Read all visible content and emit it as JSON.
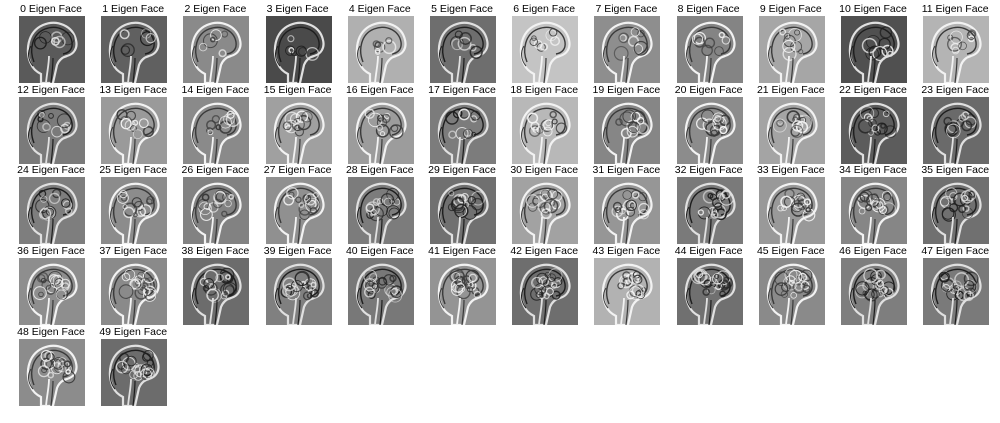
{
  "figure": {
    "caption_suffix": "Eigen Face",
    "images": [
      {
        "label": "0 Eigen Face",
        "tone": "#5a5a5a"
      },
      {
        "label": "1 Eigen Face",
        "tone": "#606060"
      },
      {
        "label": "2 Eigen Face",
        "tone": "#8a8a8a"
      },
      {
        "label": "3 Eigen Face",
        "tone": "#4a4a4a"
      },
      {
        "label": "4 Eigen Face",
        "tone": "#b0b0b0"
      },
      {
        "label": "5 Eigen Face",
        "tone": "#6e6e6e"
      },
      {
        "label": "6 Eigen Face",
        "tone": "#c4c4c4"
      },
      {
        "label": "7 Eigen Face",
        "tone": "#8e8e8e"
      },
      {
        "label": "8 Eigen Face",
        "tone": "#848484"
      },
      {
        "label": "9 Eigen Face",
        "tone": "#a6a6a6"
      },
      {
        "label": "10 Eigen Face",
        "tone": "#505050"
      },
      {
        "label": "11 Eigen Face",
        "tone": "#b4b4b4"
      },
      {
        "label": "12 Eigen Face",
        "tone": "#7a7a7a"
      },
      {
        "label": "13 Eigen Face",
        "tone": "#9a9a9a"
      },
      {
        "label": "14 Eigen Face",
        "tone": "#8a8a8a"
      },
      {
        "label": "15 Eigen Face",
        "tone": "#a0a0a0"
      },
      {
        "label": "16 Eigen Face",
        "tone": "#9c9c9c"
      },
      {
        "label": "17 Eigen Face",
        "tone": "#7c7c7c"
      },
      {
        "label": "18 Eigen Face",
        "tone": "#b8b8b8"
      },
      {
        "label": "19 Eigen Face",
        "tone": "#868686"
      },
      {
        "label": "20 Eigen Face",
        "tone": "#8c8c8c"
      },
      {
        "label": "21 Eigen Face",
        "tone": "#a4a4a4"
      },
      {
        "label": "22 Eigen Face",
        "tone": "#5c5c5c"
      },
      {
        "label": "23 Eigen Face",
        "tone": "#6a6a6a"
      },
      {
        "label": "24 Eigen Face",
        "tone": "#7e7e7e"
      },
      {
        "label": "25 Eigen Face",
        "tone": "#8c8c8c"
      },
      {
        "label": "26 Eigen Face",
        "tone": "#828282"
      },
      {
        "label": "27 Eigen Face",
        "tone": "#909090"
      },
      {
        "label": "28 Eigen Face",
        "tone": "#7c7c7c"
      },
      {
        "label": "29 Eigen Face",
        "tone": "#707070"
      },
      {
        "label": "30 Eigen Face",
        "tone": "#a2a2a2"
      },
      {
        "label": "31 Eigen Face",
        "tone": "#969696"
      },
      {
        "label": "32 Eigen Face",
        "tone": "#7a7a7a"
      },
      {
        "label": "33 Eigen Face",
        "tone": "#999999"
      },
      {
        "label": "34 Eigen Face",
        "tone": "#868686"
      },
      {
        "label": "35 Eigen Face",
        "tone": "#707070"
      },
      {
        "label": "36 Eigen Face",
        "tone": "#8e8e8e"
      },
      {
        "label": "37 Eigen Face",
        "tone": "#8a8a8a"
      },
      {
        "label": "38 Eigen Face",
        "tone": "#6c6c6c"
      },
      {
        "label": "39 Eigen Face",
        "tone": "#808080"
      },
      {
        "label": "40 Eigen Face",
        "tone": "#787878"
      },
      {
        "label": "41 Eigen Face",
        "tone": "#949494"
      },
      {
        "label": "42 Eigen Face",
        "tone": "#6e6e6e"
      },
      {
        "label": "43 Eigen Face",
        "tone": "#b2b2b2"
      },
      {
        "label": "44 Eigen Face",
        "tone": "#707070"
      },
      {
        "label": "45 Eigen Face",
        "tone": "#8a8a8a"
      },
      {
        "label": "46 Eigen Face",
        "tone": "#7e7e7e"
      },
      {
        "label": "47 Eigen Face",
        "tone": "#7a7a7a"
      },
      {
        "label": "48 Eigen Face",
        "tone": "#8c8c8c"
      },
      {
        "label": "49 Eigen Face",
        "tone": "#6c6c6c"
      }
    ]
  }
}
